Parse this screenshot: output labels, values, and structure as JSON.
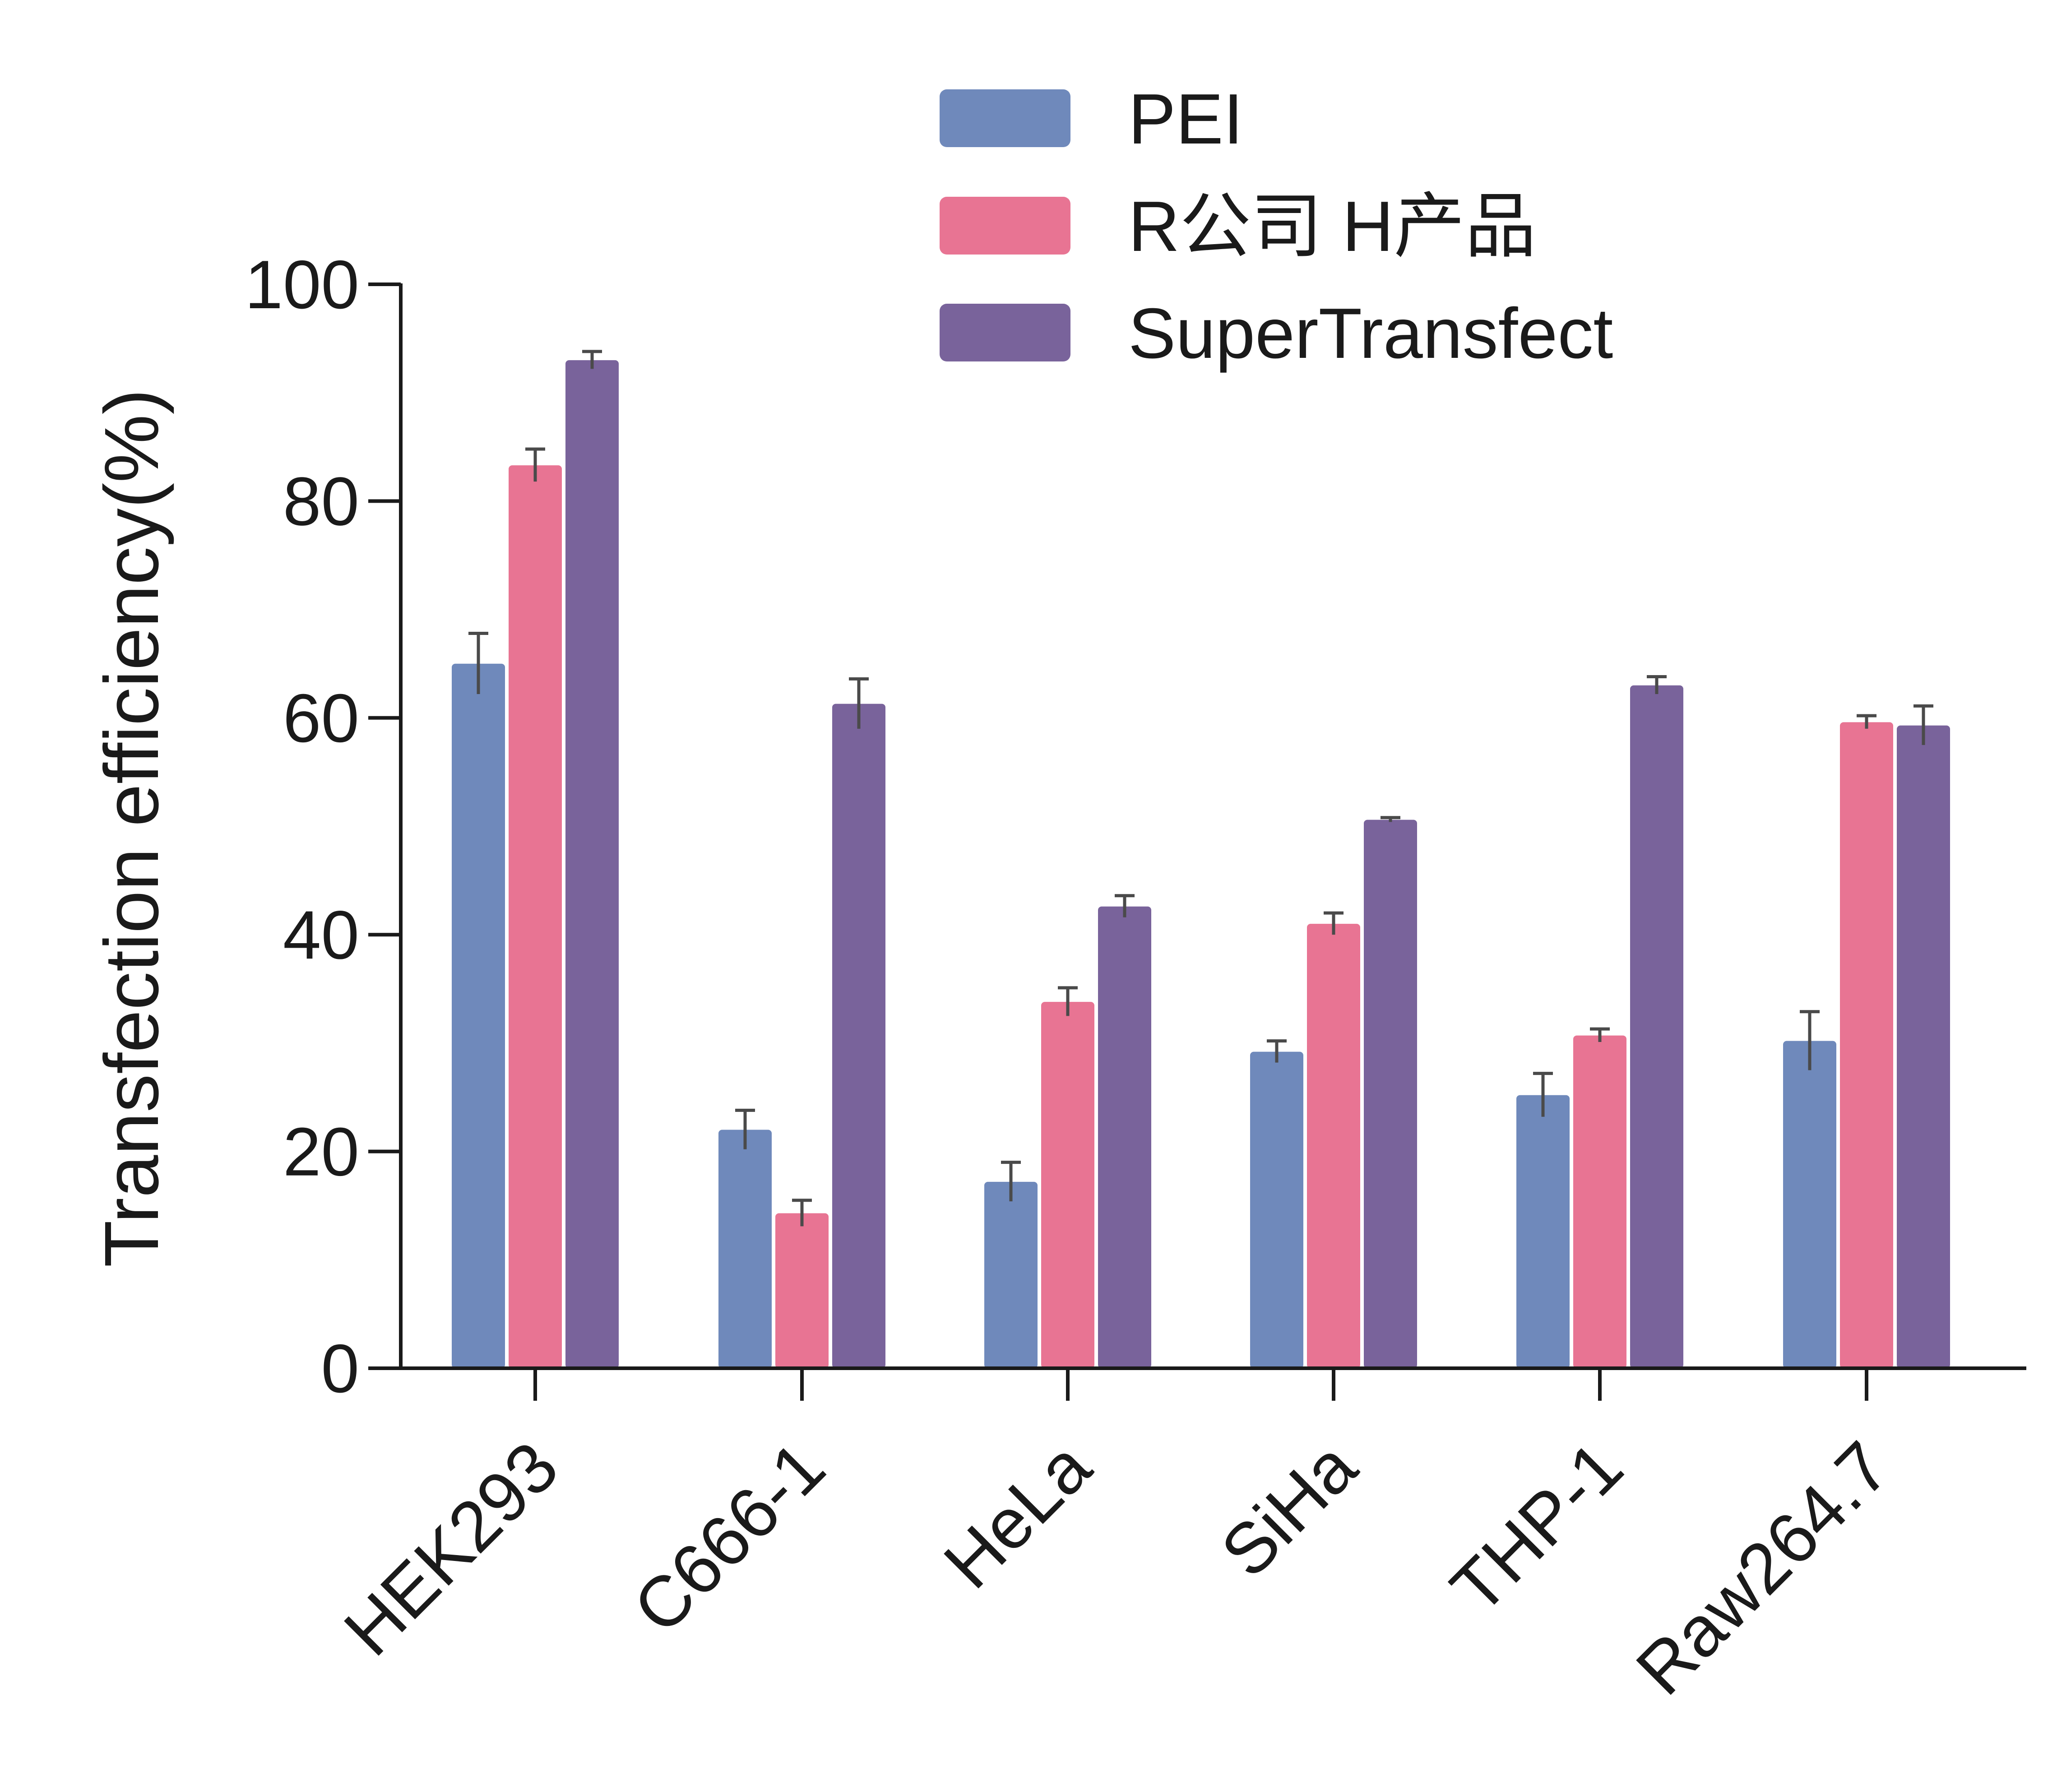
{
  "chart_data": {
    "type": "bar",
    "title": "",
    "xlabel": "",
    "ylabel": "Transfection efficiency(%)",
    "ylim": [
      0,
      100
    ],
    "yticks": [
      "0",
      "20",
      "40",
      "60",
      "80",
      "100"
    ],
    "legend_position": "top-right",
    "grid": false,
    "categories": [
      "HEK293",
      "C666-1",
      "HeLa",
      "SiHa",
      "THP-1",
      "Raw264.7"
    ],
    "series": [
      {
        "name": "PEI",
        "color": "#6f89bb",
        "values": [
          65.0,
          22.0,
          17.2,
          29.2,
          25.2,
          30.2
        ],
        "errors": [
          2.8,
          1.8,
          1.8,
          1.0,
          2.0,
          2.7
        ]
      },
      {
        "name": "R公司 H产品",
        "color": "#e87493",
        "values": [
          83.3,
          14.3,
          33.8,
          41.0,
          30.7,
          59.6
        ],
        "errors": [
          1.5,
          1.2,
          1.3,
          1.0,
          0.6,
          0.6
        ]
      },
      {
        "name": "SuperTransfect",
        "color": "#79639b",
        "values": [
          93.0,
          61.3,
          42.6,
          50.6,
          63.0,
          59.3
        ],
        "errors": [
          0.8,
          2.3,
          1.0,
          0.2,
          0.8,
          1.8
        ]
      }
    ]
  }
}
